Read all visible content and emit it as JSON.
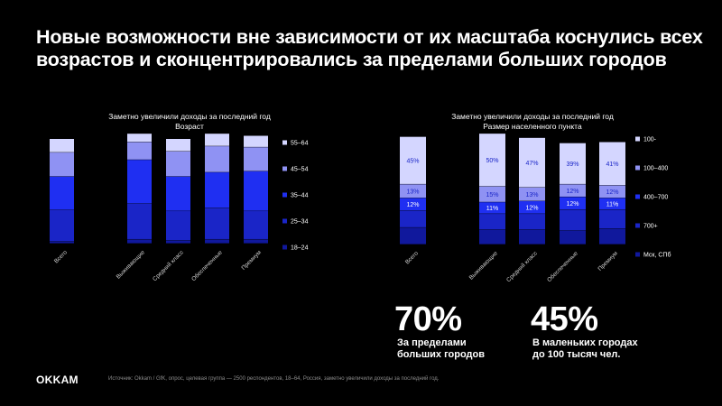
{
  "headline": {
    "line1": "Новые возможности вне зависимости от их масштаба коснулись всех",
    "line2": "возрастов и сконцентрировались за пределами больших городов"
  },
  "colors": {
    "background": "#000000",
    "text": "#ffffff",
    "tier1": "#d4d6ff",
    "tier2": "#8f92f3",
    "tier3": "#1f2ff2",
    "tier4": "#1a25c7",
    "tier5": "#10189c",
    "muted": "#8a8a8a"
  },
  "chart_data": [
    {
      "type": "bar",
      "stacked": true,
      "title": "Заметно увеличили доходы за последний год",
      "subtitle": "Возраст",
      "categories": [
        "Всего",
        "Выживающие",
        "Средний класс",
        "Обеспеченные",
        "Премиум"
      ],
      "legend_position": "right",
      "series": [
        {
          "name": "18–24",
          "values": [
            2,
            4,
            3,
            4,
            4
          ]
        },
        {
          "name": "25–34",
          "values": [
            30,
            34,
            28,
            30,
            27
          ]
        },
        {
          "name": "35–44",
          "values": [
            32,
            42,
            33,
            34,
            38
          ]
        },
        {
          "name": "45–54",
          "values": [
            23,
            17,
            24,
            25,
            23
          ]
        },
        {
          "name": "55–64",
          "values": [
            13,
            8,
            12,
            12,
            11
          ]
        }
      ],
      "legend_order": [
        "55–64",
        "45–54",
        "35–44",
        "25–34",
        "18–24"
      ],
      "ylim": [
        0,
        100
      ]
    },
    {
      "type": "bar",
      "stacked": true,
      "title": "Заметно увеличили доходы за последний год",
      "subtitle": "Размер населенного пункта",
      "categories": [
        "Всего",
        "Выживающие",
        "Средний класс",
        "Обеспеченные",
        "Премиум"
      ],
      "legend_position": "right",
      "series": [
        {
          "name": "Мск, СПб",
          "values": [
            16,
            14,
            14,
            13,
            15
          ]
        },
        {
          "name": "700+",
          "values": [
            16,
            15,
            15,
            20,
            18
          ]
        },
        {
          "name": "400–700",
          "values": [
            12,
            11,
            12,
            12,
            11
          ]
        },
        {
          "name": "100–400",
          "values": [
            13,
            15,
            13,
            12,
            12
          ]
        },
        {
          "name": "100-",
          "values": [
            45,
            50,
            47,
            39,
            41
          ]
        }
      ],
      "legend_order": [
        "100-",
        "100–400",
        "400–700",
        "700+",
        "Мск, СПб"
      ],
      "data_labels": {
        "400–700": [
          "12%",
          "11%",
          "12%",
          "12%",
          "11%"
        ],
        "100–400": [
          "13%",
          "15%",
          "13%",
          "12%",
          "12%"
        ],
        "100-": [
          "45%",
          "50%",
          "47%",
          "39%",
          "41%"
        ]
      },
      "ylim": [
        0,
        100
      ]
    }
  ],
  "chart_titles": [
    {
      "line1": "Заметно увеличили доходы за последний год",
      "line2": "Возраст"
    },
    {
      "line1": "Заметно увеличили доходы за последний год",
      "line2": "Размер населенного пункта"
    }
  ],
  "stats": [
    {
      "value": "70%",
      "label_line1": "За пределами",
      "label_line2": "больших городов"
    },
    {
      "value": "45%",
      "label_line1": "В маленьких городах",
      "label_line2": "до 100 тысяч чел."
    }
  ],
  "footer": {
    "logo": "OKKAM",
    "source": "Источник: Okkam / GfK, опрос, целевая группа — 2500 респондентов, 18–64, Россия, заметно увеличили доходы за последний год."
  }
}
